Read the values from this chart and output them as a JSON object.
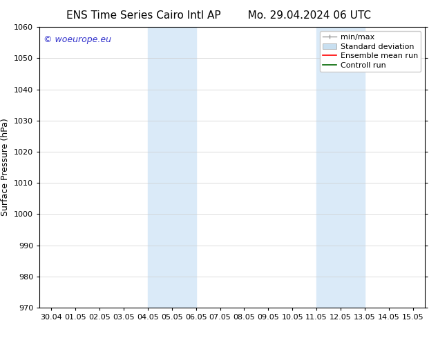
{
  "title_left": "ENS Time Series Cairo Intl AP",
  "title_right": "Mo. 29.04.2024 06 UTC",
  "ylabel": "Surface Pressure (hPa)",
  "ylim": [
    970,
    1060
  ],
  "yticks": [
    970,
    980,
    990,
    1000,
    1010,
    1020,
    1030,
    1040,
    1050,
    1060
  ],
  "x_labels": [
    "30.04",
    "01.05",
    "02.05",
    "03.05",
    "04.05",
    "05.05",
    "06.05",
    "07.05",
    "08.05",
    "09.05",
    "10.05",
    "11.05",
    "12.05",
    "13.05",
    "14.05",
    "15.05"
  ],
  "x_values": [
    0,
    1,
    2,
    3,
    4,
    5,
    6,
    7,
    8,
    9,
    10,
    11,
    12,
    13,
    14,
    15
  ],
  "xlim": [
    -0.5,
    15.5
  ],
  "shaded_regions": [
    {
      "x_start": 4,
      "x_end": 6,
      "color": "#daeaf8"
    },
    {
      "x_start": 11,
      "x_end": 13,
      "color": "#daeaf8"
    }
  ],
  "watermark_text": "© woeurope.eu",
  "watermark_color": "#3333cc",
  "background_color": "#ffffff",
  "grid_color": "#cccccc",
  "border_color": "#000000",
  "legend_items": [
    {
      "label": "min/max",
      "color": "#aaaaaa",
      "style": "minmax"
    },
    {
      "label": "Standard deviation",
      "color": "#c8dff0",
      "style": "filled_box"
    },
    {
      "label": "Ensemble mean run",
      "color": "#ff0000",
      "style": "line"
    },
    {
      "label": "Controll run",
      "color": "#006600",
      "style": "line"
    }
  ],
  "title_fontsize": 11,
  "tick_fontsize": 8,
  "label_fontsize": 9,
  "watermark_fontsize": 9,
  "legend_fontsize": 8
}
